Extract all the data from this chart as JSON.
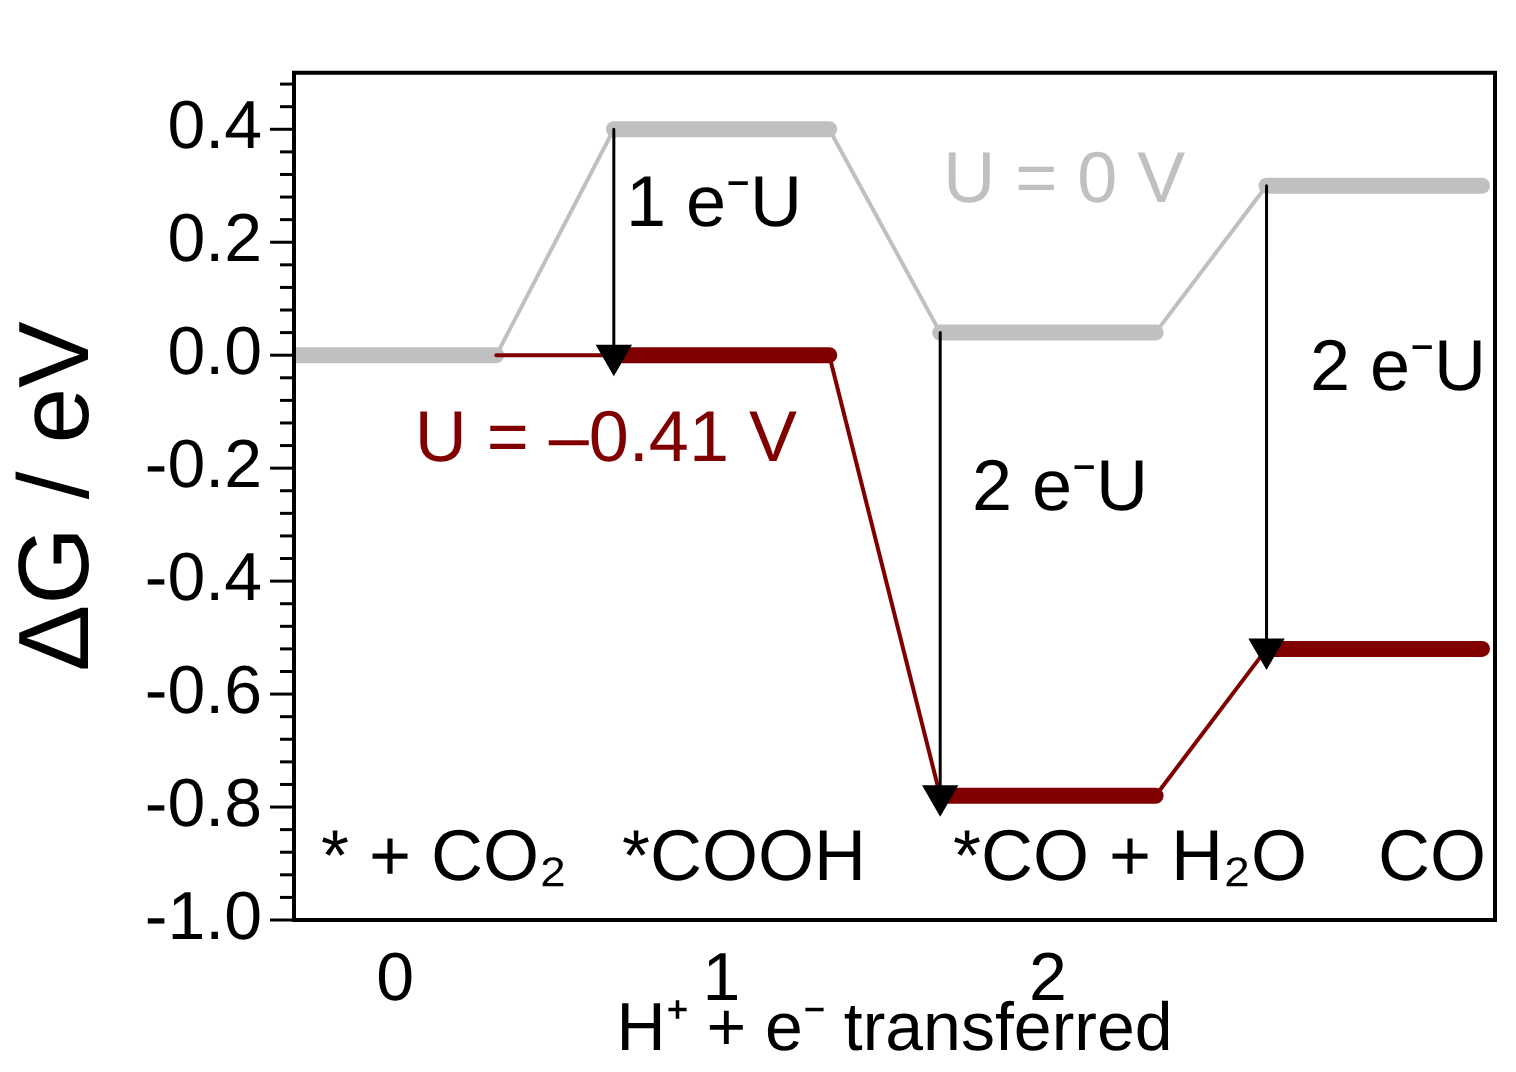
{
  "chart_data": {
    "type": "line",
    "xlabel": "H⁺ + e⁻ transferred",
    "ylabel": "ΔG / eV",
    "xlim": [
      -0.31,
      3.37
    ],
    "xticks": [
      0,
      1,
      2
    ],
    "ylim": [
      -1.0,
      0.5
    ],
    "yticks": [
      {
        "value": -1.0,
        "label": "-1.0"
      },
      {
        "value": -0.96,
        "label": null
      },
      {
        "value": -0.92,
        "label": null
      },
      {
        "value": -0.88,
        "label": null
      },
      {
        "value": -0.84,
        "label": null
      },
      {
        "value": -0.8,
        "label": "-0.8"
      },
      {
        "value": -0.76,
        "label": null
      },
      {
        "value": -0.72,
        "label": null
      },
      {
        "value": -0.68,
        "label": null
      },
      {
        "value": -0.64,
        "label": null
      },
      {
        "value": -0.6,
        "label": "-0.6"
      },
      {
        "value": -0.56,
        "label": null
      },
      {
        "value": -0.52,
        "label": null
      },
      {
        "value": -0.48,
        "label": null
      },
      {
        "value": -0.44,
        "label": null
      },
      {
        "value": -0.4,
        "label": "-0.4"
      },
      {
        "value": -0.36,
        "label": null
      },
      {
        "value": -0.32,
        "label": null
      },
      {
        "value": -0.28,
        "label": null
      },
      {
        "value": -0.24,
        "label": null
      },
      {
        "value": -0.2,
        "label": "-0.2"
      },
      {
        "value": -0.16,
        "label": null
      },
      {
        "value": -0.12,
        "label": null
      },
      {
        "value": -0.08,
        "label": null
      },
      {
        "value": -0.04,
        "label": null
      },
      {
        "value": 0,
        "label": "0.0"
      },
      {
        "value": 0.04,
        "label": null
      },
      {
        "value": 0.08,
        "label": null
      },
      {
        "value": 0.12,
        "label": null
      },
      {
        "value": 0.16,
        "label": null
      },
      0.2,
      {
        "value": 0.24,
        "label": null
      },
      {
        "value": 0.28,
        "label": null
      },
      {
        "value": 0.32,
        "label": null
      },
      {
        "value": 0.36,
        "label": null
      },
      0.4,
      {
        "value": 0.44,
        "label": null
      },
      {
        "value": 0.48,
        "label": null
      }
    ],
    "series": [
      {
        "name": "U = 0 V",
        "color": "#c0c0c0",
        "x": [
          -0.31,
          0.31,
          0.67,
          1.33,
          1.67,
          2.33,
          2.67,
          3.33
        ],
        "values": [
          0,
          0,
          0.4,
          0.4,
          0.04,
          0.04,
          0.3,
          0.3
        ]
      },
      {
        "name": "U = –0.41 V",
        "color": "#800000",
        "x": [
          0.31,
          0.67,
          1.33,
          1.67,
          2.33,
          2.67,
          3.33
        ],
        "values": [
          0,
          0,
          0,
          -0.78,
          -0.78,
          -0.52,
          -0.52
        ]
      },
      {
        "color": "#000000",
        "marker": "triangle",
        "x": [
          0.67,
          0.67
        ],
        "values": [
          0.4,
          0
        ]
      },
      {
        "color": "#000000",
        "marker": "triangle",
        "x": [
          1.67,
          1.67
        ],
        "values": [
          0.04,
          -0.78
        ]
      },
      {
        "color": "#000000",
        "marker": "triangle",
        "x": [
          2.67,
          2.67
        ],
        "values": [
          0.3,
          -0.52
        ]
      }
    ],
    "annotations": [
      "* + CO₂",
      "*COOH",
      "*CO + H₂O",
      "CO",
      "1 e⁻U",
      "2 e⁻U",
      "2 e⁻U"
    ],
    "legend": false,
    "grid": false
  }
}
